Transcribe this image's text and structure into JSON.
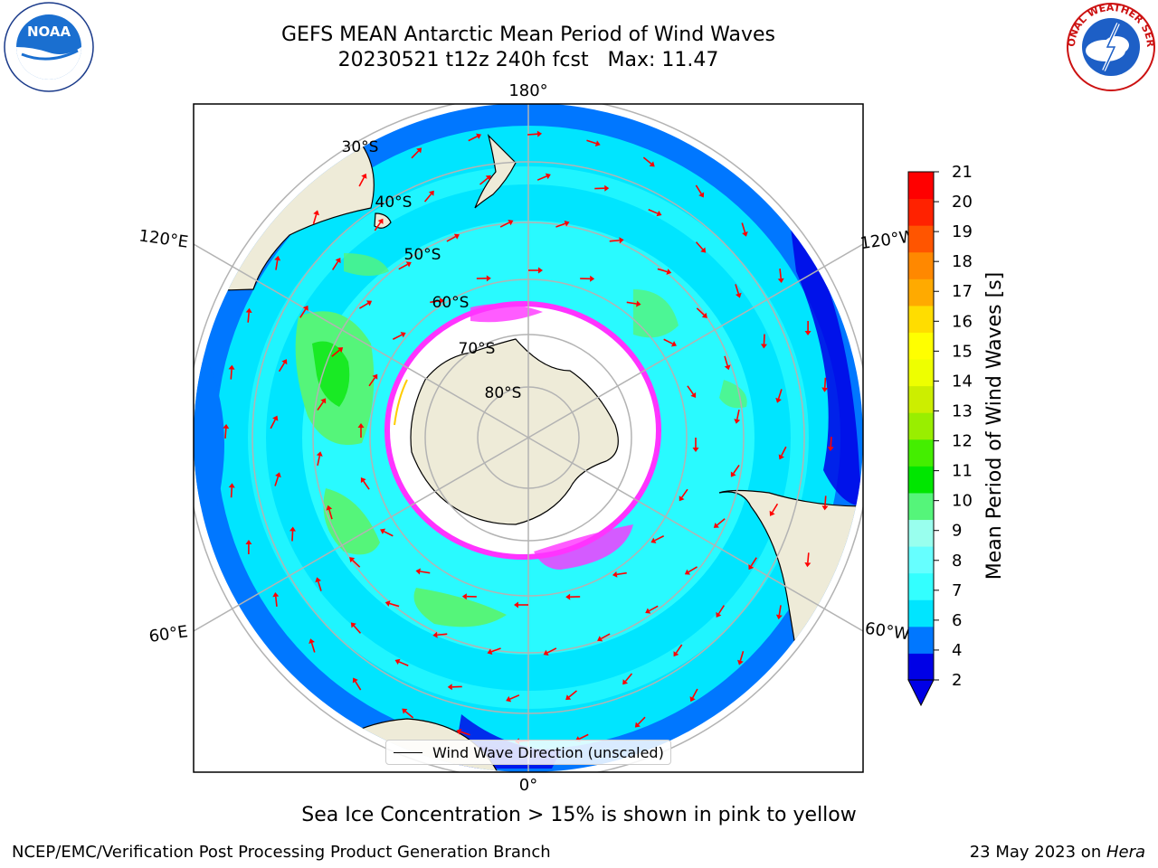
{
  "header": {
    "title_line1": "GEFS MEAN Antarctic Mean Period of Wind Waves",
    "title_line2": "20230521 t12z 240h fcst   Max: 11.47"
  },
  "logos": {
    "noaa": {
      "icon": "noaa-logo",
      "text": "NOAA"
    },
    "nws": {
      "icon": "nws-logo",
      "text": "NATIONAL WEATHER SERVICE"
    }
  },
  "map": {
    "projection": "south-polar-stereographic",
    "longitude_labels": {
      "top": "180°",
      "bottom": "0°",
      "left_upper": "120°E",
      "left_lower": "60°E",
      "right_upper": "120°W",
      "right_lower": "60°W"
    },
    "latitude_labels": [
      "30°S",
      "40°S",
      "50°S",
      "60°S",
      "70°S",
      "80°S"
    ],
    "legend": {
      "label": "Wind Wave Direction (unscaled)"
    },
    "colors": {
      "land": "#eeebd8",
      "ice_edge": "#ff33ff",
      "arrows": "#ff0000",
      "gridlines": "#b3b3b3"
    }
  },
  "colorbar": {
    "label": "Mean Period of Wind Waves [s]",
    "ticks": [
      "2",
      "4",
      "6",
      "7",
      "8",
      "9",
      "10",
      "11",
      "12",
      "13",
      "14",
      "15",
      "16",
      "17",
      "18",
      "19",
      "20",
      "21"
    ],
    "colors": [
      "#0000e6",
      "#0077ff",
      "#00e5ff",
      "#33ffff",
      "#66ffff",
      "#99ffee",
      "#55f57a",
      "#00e600",
      "#44ee00",
      "#99ee00",
      "#ccee00",
      "#eeff00",
      "#ffff00",
      "#ffdd00",
      "#ffaa00",
      "#ff8800",
      "#ff5500",
      "#ff2200",
      "#ff0000"
    ],
    "extend": "min"
  },
  "caption": "Sea Ice Concentration > 15% is shown in pink to yellow",
  "footer": {
    "left": "NCEP/EMC/Verification Post Processing Product Generation Branch",
    "right_prefix": "23 May 2023 on ",
    "right_host": "Hera"
  }
}
